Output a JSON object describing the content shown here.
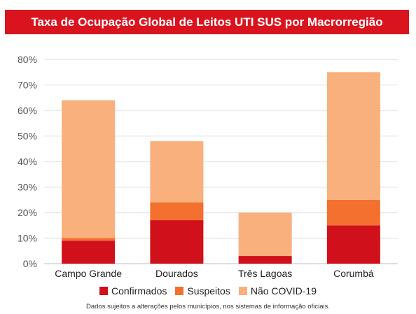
{
  "chart_data": {
    "type": "bar",
    "stacked": true,
    "title": "Taxa de Ocupação Global de Leitos UTI SUS por Macrorregião",
    "categories": [
      "Campo Grande",
      "Dourados",
      "Três Lagoas",
      "Corumbá"
    ],
    "series": [
      {
        "name": "Confirmados",
        "color": "#d0101a",
        "values": [
          9,
          17,
          3,
          15
        ]
      },
      {
        "name": "Suspeitos",
        "color": "#f4702e",
        "values": [
          1,
          7,
          0,
          10
        ]
      },
      {
        "name": "Não COVID-19",
        "color": "#f9b07c",
        "values": [
          54,
          24,
          17,
          50
        ]
      }
    ],
    "y_ticks": [
      "0%",
      "10%",
      "20%",
      "30%",
      "40%",
      "50%",
      "60%",
      "70%",
      "80%"
    ],
    "ylim": [
      0,
      80
    ],
    "grid": true,
    "legend_position": "bottom"
  },
  "footnote": "Dados sujeitos a alterações pelos municípios, nos sistemas de informação oficiais."
}
